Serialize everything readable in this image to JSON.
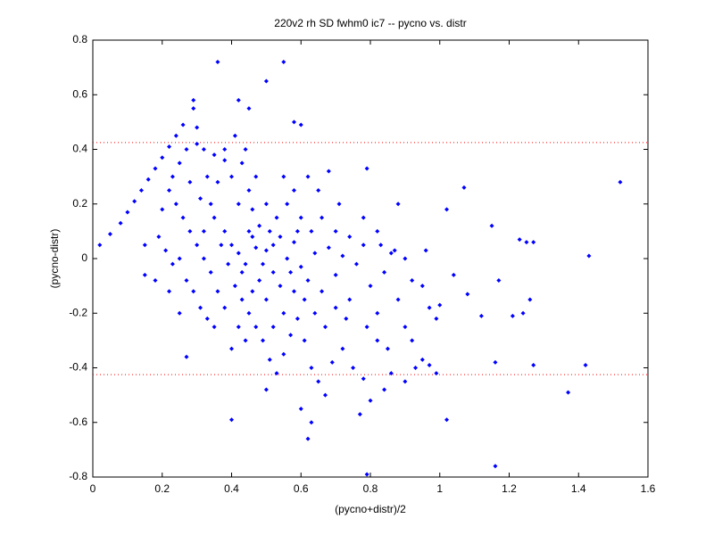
{
  "chart_data": {
    "type": "scatter",
    "title": "220v2 rh SD fwhm0 ic7 -- pycno vs. distr",
    "xlabel": "(pycno+distr)/2",
    "ylabel": "(pycno-distr)",
    "color": "#0000ff",
    "xlim": [
      0,
      1.6
    ],
    "xticks": [
      0,
      0.2,
      0.4,
      0.6,
      0.8,
      1,
      1.2,
      1.4,
      1.6
    ],
    "ylim": [
      -0.8,
      0.8
    ],
    "yticks": [
      -0.8,
      -0.6,
      -0.4,
      -0.2,
      0,
      0.2,
      0.4,
      0.6,
      0.8
    ],
    "reference_lines": [
      0.425,
      -0.425
    ],
    "reference_color": "#ff0000",
    "x": [
      0.36,
      0.55,
      0.5,
      1.52,
      1.43,
      1.42,
      1.37,
      1.16,
      0.79,
      0.62,
      1.27,
      1.24,
      1.26,
      1.25,
      1.23,
      1.27,
      1.15,
      1.17,
      1.12,
      1.16,
      1.21,
      1.07,
      1.02,
      1.04,
      1.08,
      1.02,
      0.99,
      0.95,
      0.4,
      0.27,
      0.02,
      0.05,
      0.08,
      0.1,
      0.12,
      0.14,
      0.16,
      0.18,
      0.2,
      0.22,
      0.24,
      0.26,
      0.29,
      0.29,
      0.3,
      0.32,
      0.33,
      0.31,
      0.35,
      0.38,
      0.4,
      0.42,
      0.44,
      0.46,
      0.48,
      0.5,
      0.52,
      0.54,
      0.56,
      0.58,
      0.6,
      0.62,
      0.64,
      0.66,
      0.68,
      0.7,
      0.72,
      0.74,
      0.76,
      0.78,
      0.8,
      0.82,
      0.84,
      0.86,
      0.88,
      0.9,
      0.92,
      0.45,
      0.47,
      0.43,
      0.41,
      0.44,
      0.38,
      0.36,
      0.34,
      0.37,
      0.39,
      0.41,
      0.43,
      0.45,
      0.47,
      0.49,
      0.51,
      0.53,
      0.5,
      0.55,
      0.57,
      0.59,
      0.61,
      0.63,
      0.65,
      0.67,
      0.6,
      0.63,
      0.69,
      0.72,
      0.75,
      0.78,
      0.8,
      0.77,
      0.84,
      0.86,
      0.9,
      0.93,
      0.97,
      0.85,
      0.82,
      0.79,
      0.73,
      0.7,
      0.67,
      0.64,
      0.61,
      0.58,
      0.55,
      0.52,
      0.5,
      0.48,
      0.46,
      0.44,
      0.42,
      0.4,
      0.38,
      0.36,
      0.34,
      0.32,
      0.3,
      0.28,
      0.26,
      0.24,
      0.22,
      0.2,
      0.19,
      0.21,
      0.23,
      0.25,
      0.27,
      0.29,
      0.31,
      0.33,
      0.35,
      0.15,
      0.15,
      0.18,
      0.22,
      0.25,
      0.23,
      0.25,
      0.27,
      0.3,
      0.28,
      0.32,
      0.35,
      0.4,
      0.42,
      0.46,
      0.5,
      0.53,
      0.56,
      0.6,
      0.63,
      0.66,
      0.7,
      0.74,
      0.78,
      0.82,
      0.55,
      0.58,
      0.62,
      0.65,
      0.68,
      0.71,
      0.79,
      0.83,
      0.87,
      0.9,
      0.95,
      0.92,
      0.97,
      0.99,
      1.0,
      0.96,
      0.88,
      0.52,
      0.54,
      0.49,
      0.47,
      0.57,
      0.59,
      0.51,
      0.45,
      0.43,
      0.6,
      0.58,
      0.42,
      0.45,
      0.38
    ],
    "values": [
      0.72,
      0.72,
      0.65,
      0.28,
      0.01,
      -0.39,
      -0.49,
      -0.76,
      -0.79,
      -0.66,
      -0.39,
      -0.2,
      -0.15,
      0.06,
      0.07,
      0.06,
      0.12,
      -0.08,
      -0.21,
      -0.38,
      -0.21,
      0.26,
      0.18,
      -0.06,
      -0.13,
      -0.59,
      -0.42,
      -0.37,
      -0.59,
      -0.36,
      0.05,
      0.09,
      0.13,
      0.17,
      0.21,
      0.25,
      0.29,
      0.33,
      0.37,
      0.41,
      0.45,
      0.49,
      0.55,
      0.58,
      0.42,
      0.4,
      0.3,
      0.22,
      0.15,
      0.1,
      0.05,
      0.02,
      -0.02,
      0.08,
      0.12,
      0.03,
      -0.05,
      -0.1,
      0,
      0.06,
      -0.03,
      -0.08,
      0.02,
      -0.12,
      0.04,
      -0.06,
      0.01,
      -0.15,
      -0.02,
      0.05,
      -0.1,
      -0.2,
      -0.05,
      0.02,
      -0.15,
      -0.25,
      -0.3,
      0.25,
      0.3,
      0.35,
      0.45,
      0.4,
      0.36,
      0.28,
      0.2,
      0.05,
      -0.02,
      -0.1,
      -0.15,
      -0.2,
      -0.25,
      -0.3,
      -0.37,
      -0.42,
      -0.48,
      -0.35,
      -0.28,
      -0.22,
      -0.3,
      -0.4,
      -0.45,
      -0.5,
      -0.55,
      -0.6,
      -0.38,
      -0.33,
      -0.4,
      -0.44,
      -0.52,
      -0.57,
      -0.48,
      -0.42,
      -0.45,
      -0.4,
      -0.39,
      -0.33,
      -0.3,
      -0.25,
      -0.22,
      -0.18,
      -0.25,
      -0.2,
      -0.15,
      -0.12,
      -0.2,
      -0.25,
      -0.15,
      -0.08,
      -0.12,
      -0.3,
      -0.25,
      -0.33,
      -0.18,
      -0.12,
      -0.05,
      0,
      0.05,
      0.1,
      0.15,
      0.2,
      0.25,
      0.18,
      0.08,
      0.03,
      -0.02,
      0,
      -0.08,
      -0.12,
      -0.18,
      -0.22,
      -0.25,
      0.05,
      -0.06,
      -0.08,
      -0.12,
      -0.2,
      0.3,
      0.35,
      0.4,
      0.48,
      0.28,
      0.1,
      0.38,
      0.3,
      0.2,
      0.18,
      0.2,
      0.15,
      0.2,
      0.15,
      0.1,
      0.15,
      0.1,
      0.08,
      0.15,
      0.1,
      0.3,
      0.25,
      0.3,
      0.25,
      0.32,
      0.2,
      0.33,
      0.05,
      0.03,
      0,
      -0.1,
      -0.08,
      -0.18,
      -0.22,
      -0.17,
      0.03,
      0.2,
      0.05,
      0.08,
      -0.02,
      0.04,
      -0.05,
      0.1,
      0.1,
      0.1,
      -0.05,
      0.49,
      0.5,
      0.58,
      0.55,
      0.4
    ]
  }
}
